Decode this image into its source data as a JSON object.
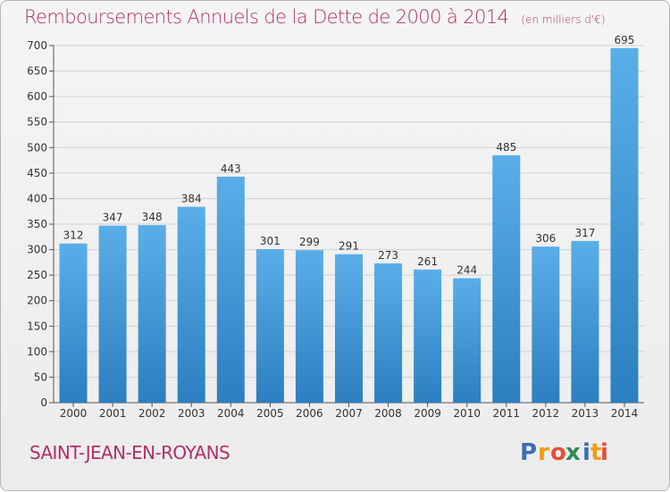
{
  "title": "Remboursements Annuels de la Dette de 2000 à 2014",
  "unit_note": "(en milliers d'€)",
  "commune": "SAINT-JEAN-EN-ROYANS",
  "logo": {
    "text": "Proxiti",
    "letters": [
      "P",
      "r",
      "o",
      "x",
      "i",
      "t",
      "i"
    ],
    "colors": [
      "#3b6fb6",
      "#f39c12",
      "#e74c3c",
      "#2e8b57",
      "#3b6fb6",
      "#f39c12",
      "#e74c3c"
    ]
  },
  "colors": {
    "bar_light": "#5aaee8",
    "bar_dark": "#2c7fc0",
    "title": "#b0306a",
    "grid": "#d0d0d0"
  },
  "chart_data": {
    "type": "bar",
    "title": "Remboursements Annuels de la Dette de 2000 à 2014",
    "ylabel": "",
    "xlabel": "",
    "categories": [
      "2000",
      "2001",
      "2002",
      "2003",
      "2004",
      "2005",
      "2006",
      "2007",
      "2008",
      "2009",
      "2010",
      "2011",
      "2012",
      "2013",
      "2014"
    ],
    "values": [
      312,
      347,
      348,
      384,
      443,
      301,
      299,
      291,
      273,
      261,
      244,
      485,
      306,
      317,
      695
    ],
    "ylim": [
      0,
      700
    ],
    "yticks": [
      0,
      50,
      100,
      150,
      200,
      250,
      300,
      350,
      400,
      450,
      500,
      550,
      600,
      650,
      700
    ],
    "grid": true,
    "data_labels": true
  }
}
